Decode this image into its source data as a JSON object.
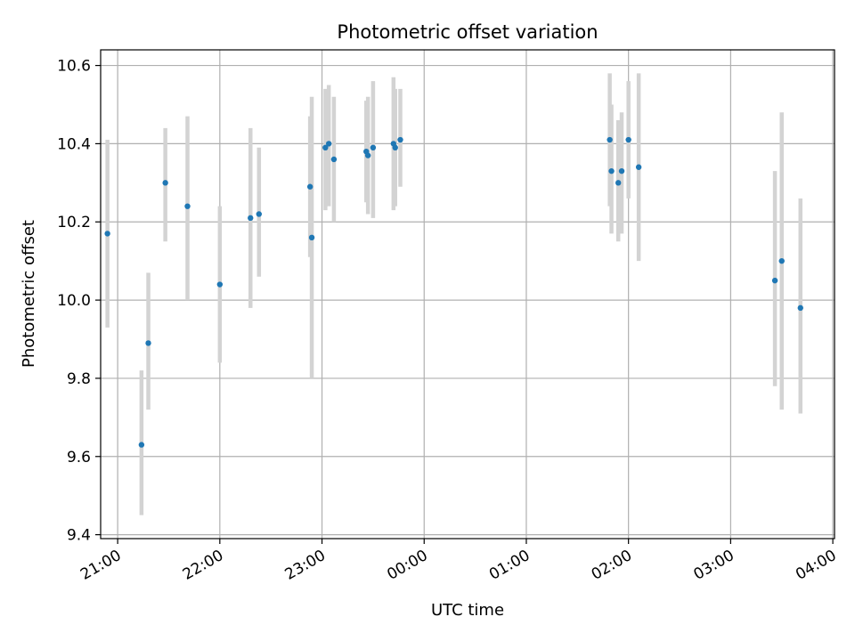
{
  "chart_data": {
    "type": "scatter",
    "title": "Photometric offset variation",
    "xlabel": "UTC time",
    "ylabel": "Photometric offset",
    "x_axis": "time",
    "xlim": [
      "20:50",
      "04:01"
    ],
    "ylim": [
      9.39,
      10.64
    ],
    "x_ticks": [
      "21:00",
      "22:00",
      "23:00",
      "00:00",
      "01:00",
      "02:00",
      "03:00",
      "04:00"
    ],
    "y_ticks": [
      9.4,
      9.6,
      9.8,
      10.0,
      10.2,
      10.4,
      10.6
    ],
    "grid": true,
    "point_color": "#1f77b4",
    "errorbar_color": "#d3d3d3",
    "points": [
      {
        "x": "20:54",
        "y": 10.17,
        "low": 9.93,
        "high": 10.41
      },
      {
        "x": "21:14",
        "y": 9.63,
        "low": 9.45,
        "high": 9.82
      },
      {
        "x": "21:18",
        "y": 9.89,
        "low": 9.72,
        "high": 10.07
      },
      {
        "x": "21:28",
        "y": 10.3,
        "low": 10.15,
        "high": 10.44
      },
      {
        "x": "21:41",
        "y": 10.24,
        "low": 10.0,
        "high": 10.47
      },
      {
        "x": "22:00",
        "y": 10.04,
        "low": 9.84,
        "high": 10.24
      },
      {
        "x": "22:18",
        "y": 10.21,
        "low": 9.98,
        "high": 10.44
      },
      {
        "x": "22:23",
        "y": 10.22,
        "low": 10.06,
        "high": 10.39
      },
      {
        "x": "22:53",
        "y": 10.29,
        "low": 10.11,
        "high": 10.47
      },
      {
        "x": "22:54",
        "y": 10.16,
        "low": 9.8,
        "high": 10.52
      },
      {
        "x": "23:02",
        "y": 10.39,
        "low": 10.23,
        "high": 10.54
      },
      {
        "x": "23:04",
        "y": 10.4,
        "low": 10.24,
        "high": 10.55
      },
      {
        "x": "23:07",
        "y": 10.36,
        "low": 10.2,
        "high": 10.52
      },
      {
        "x": "23:26",
        "y": 10.38,
        "low": 10.25,
        "high": 10.51
      },
      {
        "x": "23:27",
        "y": 10.37,
        "low": 10.22,
        "high": 10.52
      },
      {
        "x": "23:30",
        "y": 10.39,
        "low": 10.21,
        "high": 10.56
      },
      {
        "x": "23:42",
        "y": 10.4,
        "low": 10.23,
        "high": 10.57
      },
      {
        "x": "23:43",
        "y": 10.39,
        "low": 10.24,
        "high": 10.54
      },
      {
        "x": "23:46",
        "y": 10.41,
        "low": 10.29,
        "high": 10.54
      },
      {
        "x": "01:49",
        "y": 10.41,
        "low": 10.24,
        "high": 10.58
      },
      {
        "x": "01:50",
        "y": 10.33,
        "low": 10.17,
        "high": 10.5
      },
      {
        "x": "01:54",
        "y": 10.3,
        "low": 10.15,
        "high": 10.46
      },
      {
        "x": "01:56",
        "y": 10.33,
        "low": 10.17,
        "high": 10.48
      },
      {
        "x": "02:00",
        "y": 10.41,
        "low": 10.26,
        "high": 10.56
      },
      {
        "x": "02:06",
        "y": 10.34,
        "low": 10.1,
        "high": 10.58
      },
      {
        "x": "03:26",
        "y": 10.05,
        "low": 9.78,
        "high": 10.33
      },
      {
        "x": "03:30",
        "y": 10.1,
        "low": 9.72,
        "high": 10.48
      },
      {
        "x": "03:41",
        "y": 9.98,
        "low": 9.71,
        "high": 10.26
      }
    ]
  }
}
